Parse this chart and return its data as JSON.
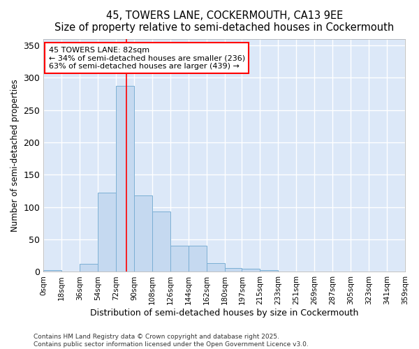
{
  "title": "45, TOWERS LANE, COCKERMOUTH, CA13 9EE",
  "subtitle": "Size of property relative to semi-detached houses in Cockermouth",
  "xlabel": "Distribution of semi-detached houses by size in Cockermouth",
  "ylabel": "Number of semi-detached properties",
  "footnote1": "Contains HM Land Registry data © Crown copyright and database right 2025.",
  "footnote2": "Contains public sector information licensed under the Open Government Licence v3.0.",
  "bar_color": "#c5d9f0",
  "bar_edge_color": "#7bafd4",
  "plot_bg_color": "#dce8f8",
  "fig_bg_color": "#ffffff",
  "grid_color": "#ffffff",
  "red_line_x": 82,
  "annotation_line1": "45 TOWERS LANE: 82sqm",
  "annotation_line2": "← 34% of semi-detached houses are smaller (236)",
  "annotation_line3": "63% of semi-detached houses are larger (439) →",
  "bin_edges": [
    0,
    18,
    36,
    54,
    72,
    90,
    108,
    126,
    144,
    162,
    180,
    197,
    215,
    233,
    251,
    269,
    287,
    305,
    323,
    341,
    359
  ],
  "bin_counts": [
    3,
    0,
    12,
    122,
    287,
    118,
    93,
    40,
    40,
    13,
    6,
    5,
    3,
    0,
    0,
    0,
    1,
    0,
    0,
    1
  ],
  "tick_labels": [
    "0sqm",
    "18sqm",
    "36sqm",
    "54sqm",
    "72sqm",
    "90sqm",
    "108sqm",
    "126sqm",
    "144sqm",
    "162sqm",
    "180sqm",
    "197sqm",
    "215sqm",
    "233sqm",
    "251sqm",
    "269sqm",
    "287sqm",
    "305sqm",
    "323sqm",
    "341sqm",
    "359sqm"
  ],
  "ylim": [
    0,
    360
  ],
  "yticks": [
    0,
    50,
    100,
    150,
    200,
    250,
    300,
    350
  ]
}
